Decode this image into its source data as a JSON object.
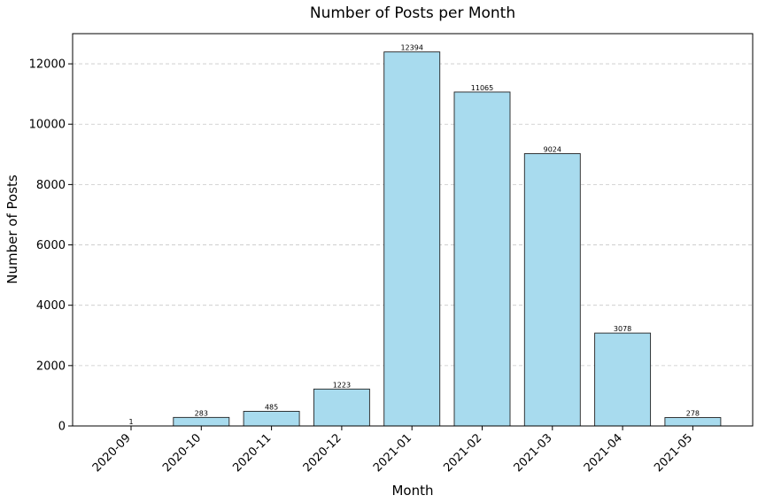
{
  "chart_data": {
    "type": "bar",
    "title": "Number of Posts per Month",
    "xlabel": "Month",
    "ylabel": "Number of Posts",
    "categories": [
      "2020-09",
      "2020-10",
      "2020-11",
      "2020-12",
      "2021-01",
      "2021-02",
      "2021-03",
      "2021-04",
      "2021-05"
    ],
    "values": [
      1,
      283,
      485,
      1223,
      12394,
      11065,
      9024,
      3078,
      278
    ],
    "ylim": [
      0,
      13000
    ],
    "yticks": [
      0,
      2000,
      4000,
      6000,
      8000,
      10000,
      12000
    ],
    "grid": "y-dashed",
    "bar_color": "#a8dbee",
    "edge_color": "#222222"
  }
}
